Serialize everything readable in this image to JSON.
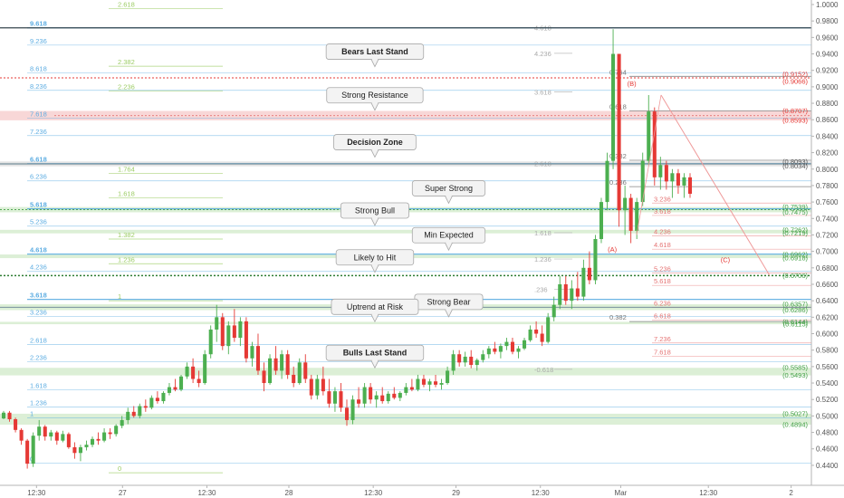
{
  "chart_data": {
    "type": "candlestick",
    "title": "",
    "ylim": [
      0.43,
      1.0
    ],
    "y_ticks": [
      "1.0000",
      "0.9800",
      "0.9600",
      "0.9400",
      "0.9200",
      "0.9000",
      "0.8800",
      "0.8600",
      "0.8400",
      "0.8200",
      "0.8000",
      "0.7800",
      "0.7600",
      "0.7400",
      "0.7200",
      "0.7000",
      "0.6800",
      "0.6600",
      "0.6400",
      "0.6200",
      "0.6000",
      "0.5800",
      "0.5600",
      "0.5400",
      "0.5200",
      "0.5000",
      "0.4800",
      "0.4600",
      "0.4400"
    ],
    "x_ticks": [
      {
        "label": "12:30",
        "pos": 0.045
      },
      {
        "label": "27",
        "pos": 0.151
      },
      {
        "label": "12:30",
        "pos": 0.255
      },
      {
        "label": "28",
        "pos": 0.356
      },
      {
        "label": "12:30",
        "pos": 0.46
      },
      {
        "label": "29",
        "pos": 0.562
      },
      {
        "label": "12:30",
        "pos": 0.666
      },
      {
        "label": "Mar",
        "pos": 0.765
      },
      {
        "label": "12:30",
        "pos": 0.873
      },
      {
        "label": "2",
        "pos": 0.975
      }
    ],
    "colors": {
      "up": "#4caf50",
      "down": "#e53935",
      "blue_fib": "#5dade2",
      "green_fib": "#8bc34a",
      "red_fib": "#e57373",
      "dark_line": "#555555"
    },
    "left_fib_levels": [
      {
        "label": "9.618",
        "value": 0.9717,
        "bold": true
      },
      {
        "label": "9.236",
        "value": 0.9507,
        "bold": false
      },
      {
        "label": "8.618",
        "value": 0.9167,
        "bold": false
      },
      {
        "label": "8.236",
        "value": 0.8957,
        "bold": false
      },
      {
        "label": "7.618",
        "value": 0.8617,
        "bold": false
      },
      {
        "label": "7.236",
        "value": 0.8407,
        "bold": false
      },
      {
        "label": "6.618",
        "value": 0.8067,
        "bold": true
      },
      {
        "label": "6.236",
        "value": 0.7857,
        "bold": false
      },
      {
        "label": "5.618",
        "value": 0.7517,
        "bold": true
      },
      {
        "label": "5.236",
        "value": 0.7307,
        "bold": false
      },
      {
        "label": "4.618",
        "value": 0.6967,
        "bold": true
      },
      {
        "label": "4.236",
        "value": 0.6757,
        "bold": false
      },
      {
        "label": "3.618",
        "value": 0.6417,
        "bold": true
      },
      {
        "label": "3.236",
        "value": 0.6207,
        "bold": false
      },
      {
        "label": "2.618",
        "value": 0.5867,
        "bold": false
      },
      {
        "label": "2.236",
        "value": 0.5657,
        "bold": false
      },
      {
        "label": "1.618",
        "value": 0.5317,
        "bold": false
      },
      {
        "label": "1.236",
        "value": 0.5107,
        "bold": false
      },
      {
        "label": "1",
        "value": 0.4977,
        "bold": false
      },
      {
        "label": "0",
        "value": 0.4427,
        "bold": false
      }
    ],
    "mid_fib_levels": [
      {
        "label": "2.618",
        "value": 0.995
      },
      {
        "label": "2.382",
        "value": 0.925
      },
      {
        "label": "2.236",
        "value": 0.895
      },
      {
        "label": "1.764",
        "value": 0.795
      },
      {
        "label": "1.618",
        "value": 0.765
      },
      {
        "label": "1.382",
        "value": 0.715
      },
      {
        "label": "1.236",
        "value": 0.685
      },
      {
        "label": "1",
        "value": 0.64
      },
      {
        "label": "0",
        "value": 0.431
      }
    ],
    "upper_fib_levels": [
      {
        "label": "4.618",
        "value": 0.9717
      },
      {
        "label": "4.236",
        "value": 0.9407
      },
      {
        "label": "3.618",
        "value": 0.8937
      },
      {
        "label": "2.618",
        "value": 0.8067
      },
      {
        "label": "1.618",
        "value": 0.7227
      },
      {
        "label": "1.236",
        "value": 0.6907
      },
      {
        "label": ".236",
        "value": 0.6537
      },
      {
        "label": "-0.618",
        "value": 0.5567
      }
    ],
    "retrace_levels": [
      {
        "label": "0.764",
        "value": 0.9127
      },
      {
        "label": "0.618",
        "value": 0.8707
      },
      {
        "label": "0.382",
        "value": 0.8107
      },
      {
        "label": "0.236",
        "value": 0.7787
      },
      {
        "label": "0.382",
        "value": 0.6147
      }
    ],
    "red_ext_levels": [
      {
        "label": "3.236",
        "value": 0.7587
      },
      {
        "label": "3.618",
        "value": 0.7437
      },
      {
        "label": "4.236",
        "value": 0.7187
      },
      {
        "label": "4.618",
        "value": 0.7027
      },
      {
        "label": "5.236",
        "value": 0.6737
      },
      {
        "label": "5.618",
        "value": 0.6587
      },
      {
        "label": "6.236",
        "value": 0.6317
      },
      {
        "label": "6.618",
        "value": 0.6167
      },
      {
        "label": "7.236",
        "value": 0.5887
      },
      {
        "label": "7.618",
        "value": 0.5727
      }
    ],
    "right_labels": [
      {
        "label": "(0.9152)",
        "value": 0.9152,
        "color": "#e53935"
      },
      {
        "label": "(0.9066)",
        "value": 0.9066,
        "color": "#e53935"
      },
      {
        "label": "(0.8707)",
        "value": 0.8707,
        "color": "#e53935"
      },
      {
        "label": "(0.8593)",
        "value": 0.8593,
        "color": "#e53935"
      },
      {
        "label": "(0.8093)",
        "value": 0.8093,
        "color": "#555555"
      },
      {
        "label": "(0.8034)",
        "value": 0.8034,
        "color": "#555555"
      },
      {
        "label": "(0.7539)",
        "value": 0.7539,
        "color": "#43a047"
      },
      {
        "label": "(0.7475)",
        "value": 0.7475,
        "color": "#43a047"
      },
      {
        "label": "(0.7262)",
        "value": 0.7262,
        "color": "#43a047"
      },
      {
        "label": "(0.7219)",
        "value": 0.7219,
        "color": "#43a047"
      },
      {
        "label": "(0.6962)",
        "value": 0.6962,
        "color": "#43a047"
      },
      {
        "label": "(0.6918)",
        "value": 0.6918,
        "color": "#43a047"
      },
      {
        "label": "(0.6706)",
        "value": 0.6706,
        "color": "#43a047"
      },
      {
        "label": "(0.6357)",
        "value": 0.6357,
        "color": "#43a047"
      },
      {
        "label": "(0.6286)",
        "value": 0.6286,
        "color": "#43a047"
      },
      {
        "label": "(0.6144)",
        "value": 0.6144,
        "color": "#43a047"
      },
      {
        "label": "(0.6115)",
        "value": 0.6115,
        "color": "#43a047"
      },
      {
        "label": "(0.5585)",
        "value": 0.5585,
        "color": "#43a047"
      },
      {
        "label": "(0.5493)",
        "value": 0.5493,
        "color": "#43a047"
      },
      {
        "label": "(0.5027)",
        "value": 0.5027,
        "color": "#43a047"
      },
      {
        "label": "(0.4894)",
        "value": 0.4894,
        "color": "#43a047"
      }
    ],
    "zones": [
      {
        "from": 0.8593,
        "to": 0.8707,
        "color": "#f8d7d7"
      },
      {
        "from": 0.8034,
        "to": 0.8093,
        "color": "#e4e4e4"
      },
      {
        "from": 0.7475,
        "to": 0.7539,
        "color": "#dcefd6"
      },
      {
        "from": 0.7219,
        "to": 0.7262,
        "color": "#dcefd6"
      },
      {
        "from": 0.6918,
        "to": 0.6962,
        "color": "#dcefd6"
      },
      {
        "from": 0.6286,
        "to": 0.6357,
        "color": "#dcefd6"
      },
      {
        "from": 0.6115,
        "to": 0.6144,
        "color": "#dcefd6"
      },
      {
        "from": 0.5493,
        "to": 0.5585,
        "color": "#dcefd6"
      },
      {
        "from": 0.4894,
        "to": 0.5027,
        "color": "#dcefd6"
      }
    ],
    "annotations": [
      {
        "text": "Bears Last Stand",
        "bold": true,
        "value": 0.9427,
        "pos": 0.462
      },
      {
        "text": "Strong Resistance",
        "bold": false,
        "value": 0.8897,
        "pos": 0.462
      },
      {
        "text": "Decision Zone",
        "bold": true,
        "value": 0.8327,
        "pos": 0.462
      },
      {
        "text": "Super Strong",
        "bold": false,
        "value": 0.7767,
        "pos": 0.553
      },
      {
        "text": "Strong Bull",
        "bold": false,
        "value": 0.7497,
        "pos": 0.462
      },
      {
        "text": "Min Expected",
        "bold": false,
        "value": 0.7197,
        "pos": 0.553
      },
      {
        "text": "Likely to Hit",
        "bold": false,
        "value": 0.6927,
        "pos": 0.462
      },
      {
        "text": "Strong Bear",
        "bold": false,
        "value": 0.6387,
        "pos": 0.553
      },
      {
        "text": "Uptrend at Risk",
        "bold": false,
        "value": 0.6327,
        "pos": 0.462
      },
      {
        "text": "Bulls Last Stand",
        "bold": true,
        "value": 0.5767,
        "pos": 0.462
      }
    ],
    "wave_labels": [
      {
        "text": "(B)",
        "value": 0.9007,
        "pos": 0.782
      },
      {
        "text": "(A)",
        "value": 0.6997,
        "pos": 0.758
      },
      {
        "text": "(C)",
        "value": 0.6867,
        "pos": 0.897
      }
    ],
    "candles": [
      [
        0.497,
        0.506,
        0.496,
        0.504
      ],
      [
        0.504,
        0.506,
        0.493,
        0.496
      ],
      [
        0.496,
        0.498,
        0.48,
        0.483
      ],
      [
        0.483,
        0.485,
        0.465,
        0.47
      ],
      [
        0.47,
        0.472,
        0.436,
        0.442
      ],
      [
        0.442,
        0.48,
        0.438,
        0.476
      ],
      [
        0.476,
        0.495,
        0.47,
        0.487
      ],
      [
        0.487,
        0.489,
        0.47,
        0.475
      ],
      [
        0.475,
        0.483,
        0.47,
        0.48
      ],
      [
        0.48,
        0.482,
        0.465,
        0.47
      ],
      [
        0.47,
        0.482,
        0.468,
        0.478
      ],
      [
        0.478,
        0.48,
        0.46,
        0.462
      ],
      [
        0.462,
        0.468,
        0.448,
        0.455
      ],
      [
        0.455,
        0.465,
        0.445,
        0.462
      ],
      [
        0.462,
        0.47,
        0.458,
        0.465
      ],
      [
        0.465,
        0.475,
        0.462,
        0.472
      ],
      [
        0.472,
        0.48,
        0.465,
        0.47
      ],
      [
        0.47,
        0.485,
        0.468,
        0.48
      ],
      [
        0.48,
        0.485,
        0.472,
        0.478
      ],
      [
        0.478,
        0.49,
        0.475,
        0.488
      ],
      [
        0.488,
        0.5,
        0.485,
        0.495
      ],
      [
        0.495,
        0.51,
        0.49,
        0.505
      ],
      [
        0.505,
        0.512,
        0.498,
        0.5
      ],
      [
        0.5,
        0.515,
        0.497,
        0.512
      ],
      [
        0.512,
        0.52,
        0.505,
        0.51
      ],
      [
        0.51,
        0.525,
        0.508,
        0.522
      ],
      [
        0.522,
        0.53,
        0.515,
        0.518
      ],
      [
        0.518,
        0.53,
        0.515,
        0.528
      ],
      [
        0.528,
        0.54,
        0.525,
        0.535
      ],
      [
        0.535,
        0.545,
        0.53,
        0.532
      ],
      [
        0.532,
        0.55,
        0.53,
        0.548
      ],
      [
        0.548,
        0.565,
        0.545,
        0.56
      ],
      [
        0.56,
        0.57,
        0.54,
        0.545
      ],
      [
        0.545,
        0.555,
        0.535,
        0.54
      ],
      [
        0.54,
        0.58,
        0.538,
        0.575
      ],
      [
        0.575,
        0.61,
        0.57,
        0.605
      ],
      [
        0.605,
        0.635,
        0.59,
        0.62
      ],
      [
        0.62,
        0.625,
        0.58,
        0.585
      ],
      [
        0.585,
        0.615,
        0.575,
        0.61
      ],
      [
        0.61,
        0.63,
        0.59,
        0.595
      ],
      [
        0.595,
        0.62,
        0.585,
        0.615
      ],
      [
        0.615,
        0.62,
        0.565,
        0.57
      ],
      [
        0.57,
        0.59,
        0.56,
        0.585
      ],
      [
        0.585,
        0.6,
        0.55,
        0.555
      ],
      [
        0.555,
        0.565,
        0.53,
        0.54
      ],
      [
        0.54,
        0.575,
        0.538,
        0.57
      ],
      [
        0.57,
        0.585,
        0.55,
        0.555
      ],
      [
        0.555,
        0.58,
        0.545,
        0.575
      ],
      [
        0.575,
        0.58,
        0.545,
        0.55
      ],
      [
        0.55,
        0.56,
        0.535,
        0.54
      ],
      [
        0.54,
        0.57,
        0.538,
        0.565
      ],
      [
        0.565,
        0.575,
        0.54,
        0.545
      ],
      [
        0.545,
        0.55,
        0.52,
        0.525
      ],
      [
        0.525,
        0.55,
        0.52,
        0.545
      ],
      [
        0.545,
        0.56,
        0.525,
        0.53
      ],
      [
        0.53,
        0.545,
        0.51,
        0.515
      ],
      [
        0.515,
        0.535,
        0.505,
        0.53
      ],
      [
        0.53,
        0.54,
        0.505,
        0.51
      ],
      [
        0.51,
        0.52,
        0.488,
        0.495
      ],
      [
        0.495,
        0.525,
        0.49,
        0.52
      ],
      [
        0.52,
        0.535,
        0.51,
        0.515
      ],
      [
        0.515,
        0.54,
        0.51,
        0.535
      ],
      [
        0.535,
        0.54,
        0.515,
        0.52
      ],
      [
        0.52,
        0.53,
        0.51,
        0.525
      ],
      [
        0.525,
        0.535,
        0.515,
        0.518
      ],
      [
        0.518,
        0.53,
        0.515,
        0.527
      ],
      [
        0.527,
        0.535,
        0.52,
        0.522
      ],
      [
        0.522,
        0.53,
        0.518,
        0.528
      ],
      [
        0.528,
        0.54,
        0.525,
        0.535
      ],
      [
        0.535,
        0.545,
        0.53,
        0.532
      ],
      [
        0.532,
        0.55,
        0.53,
        0.545
      ],
      [
        0.545,
        0.55,
        0.535,
        0.538
      ],
      [
        0.538,
        0.545,
        0.53,
        0.542
      ],
      [
        0.542,
        0.55,
        0.535,
        0.538
      ],
      [
        0.538,
        0.545,
        0.532,
        0.54
      ],
      [
        0.54,
        0.56,
        0.538,
        0.555
      ],
      [
        0.555,
        0.58,
        0.55,
        0.575
      ],
      [
        0.575,
        0.58,
        0.56,
        0.565
      ],
      [
        0.565,
        0.578,
        0.56,
        0.572
      ],
      [
        0.572,
        0.58,
        0.558,
        0.562
      ],
      [
        0.562,
        0.57,
        0.555,
        0.568
      ],
      [
        0.568,
        0.58,
        0.565,
        0.575
      ],
      [
        0.575,
        0.585,
        0.57,
        0.582
      ],
      [
        0.582,
        0.59,
        0.575,
        0.578
      ],
      [
        0.578,
        0.588,
        0.57,
        0.585
      ],
      [
        0.585,
        0.595,
        0.58,
        0.59
      ],
      [
        0.59,
        0.595,
        0.575,
        0.578
      ],
      [
        0.578,
        0.585,
        0.57,
        0.582
      ],
      [
        0.582,
        0.595,
        0.58,
        0.592
      ],
      [
        0.592,
        0.61,
        0.59,
        0.605
      ],
      [
        0.605,
        0.615,
        0.595,
        0.6
      ],
      [
        0.6,
        0.61,
        0.585,
        0.59
      ],
      [
        0.59,
        0.625,
        0.588,
        0.62
      ],
      [
        0.62,
        0.645,
        0.615,
        0.635
      ],
      [
        0.635,
        0.67,
        0.63,
        0.66
      ],
      [
        0.66,
        0.67,
        0.635,
        0.64
      ],
      [
        0.64,
        0.665,
        0.63,
        0.655
      ],
      [
        0.655,
        0.675,
        0.64,
        0.645
      ],
      [
        0.645,
        0.69,
        0.64,
        0.68
      ],
      [
        0.68,
        0.7,
        0.66,
        0.665
      ],
      [
        0.665,
        0.72,
        0.66,
        0.715
      ],
      [
        0.715,
        0.765,
        0.71,
        0.76
      ],
      [
        0.76,
        0.82,
        0.75,
        0.81
      ],
      [
        0.81,
        0.97,
        0.8,
        0.94
      ],
      [
        0.94,
        0.94,
        0.73,
        0.75
      ],
      [
        0.75,
        0.78,
        0.72,
        0.765
      ],
      [
        0.765,
        0.77,
        0.71,
        0.725
      ],
      [
        0.725,
        0.765,
        0.715,
        0.76
      ],
      [
        0.76,
        0.82,
        0.755,
        0.81
      ],
      [
        0.81,
        0.89,
        0.805,
        0.87
      ],
      [
        0.87,
        0.875,
        0.78,
        0.79
      ],
      [
        0.79,
        0.815,
        0.775,
        0.805
      ],
      [
        0.805,
        0.81,
        0.775,
        0.785
      ],
      [
        0.785,
        0.8,
        0.765,
        0.795
      ],
      [
        0.795,
        0.8,
        0.77,
        0.78
      ],
      [
        0.78,
        0.795,
        0.765,
        0.79
      ],
      [
        0.79,
        0.795,
        0.765,
        0.77
      ]
    ]
  }
}
